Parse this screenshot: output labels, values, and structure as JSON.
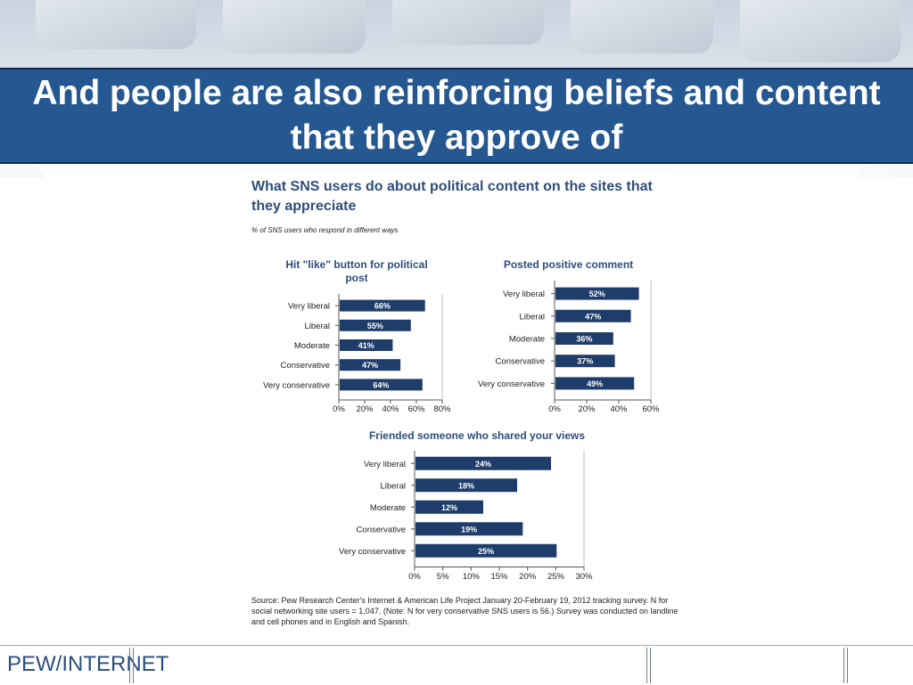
{
  "slide": {
    "title": "And people are also reinforcing beliefs and content that they approve of"
  },
  "figure": {
    "title": "What SNS users do about political content on the sites that they appreciate",
    "subtitle": "% of SNS users who respond in different ways",
    "source": "Source: Pew Research Center's Internet & American Life Project January 20-February 19, 2012 tracking survey. N for social networking site users = 1,047. (Note: N for very conservative SNS users is 56.) Survey was conducted on landline and cell phones and in English and Spanish."
  },
  "footer": {
    "logo_text": "PEW/INTERNET"
  },
  "colors": {
    "bar": "#1f3d6b",
    "title_band": "#255891",
    "figure_title": "#2e4e79"
  },
  "chart_data": [
    {
      "type": "bar",
      "orientation": "horizontal",
      "title": "Hit \"like\" button for political post",
      "categories": [
        "Very liberal",
        "Liberal",
        "Moderate",
        "Conservative",
        "Very conservative"
      ],
      "values": [
        66,
        55,
        41,
        47,
        64
      ],
      "data_labels": [
        "66%",
        "55%",
        "41%",
        "47%",
        "64%"
      ],
      "xlim": [
        0,
        80
      ],
      "xticks": [
        "0%",
        "20%",
        "40%",
        "60%",
        "80%"
      ]
    },
    {
      "type": "bar",
      "orientation": "horizontal",
      "title": "Posted positive comment",
      "categories": [
        "Very liberal",
        "Liberal",
        "Moderate",
        "Conservative",
        "Very conservative"
      ],
      "values": [
        52,
        47,
        36,
        37,
        49
      ],
      "data_labels": [
        "52%",
        "47%",
        "36%",
        "37%",
        "49%"
      ],
      "xlim": [
        0,
        60
      ],
      "xticks": [
        "0%",
        "20%",
        "40%",
        "60%"
      ]
    },
    {
      "type": "bar",
      "orientation": "horizontal",
      "title": "Friended someone who shared your views",
      "categories": [
        "Very liberal",
        "Liberal",
        "Moderate",
        "Conservative",
        "Very conservative"
      ],
      "values": [
        24,
        18,
        12,
        19,
        25
      ],
      "data_labels": [
        "24%",
        "18%",
        "12%",
        "19%",
        "25%"
      ],
      "xlim": [
        0,
        30
      ],
      "xticks": [
        "0%",
        "5%",
        "10%",
        "15%",
        "20%",
        "25%",
        "30%"
      ]
    }
  ]
}
